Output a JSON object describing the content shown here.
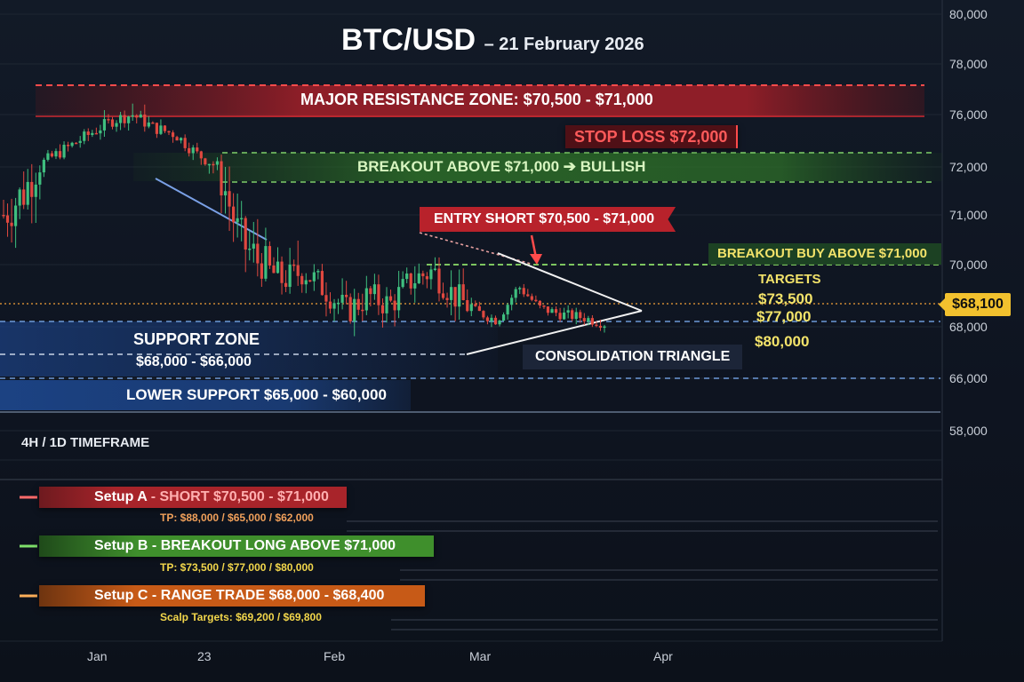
{
  "title": {
    "main": "BTC/USD",
    "date": "– 21 February 2026"
  },
  "y_axis": {
    "ticks": [
      "80,000",
      "78,000",
      "76,000",
      "72,000",
      "71,000",
      "70,000",
      "68,000",
      "66,000",
      "58,000"
    ]
  },
  "x_axis": {
    "ticks": [
      "Jan",
      "23",
      "Feb",
      "Mar",
      "Apr"
    ]
  },
  "current_price": "$68,100",
  "annotations": {
    "major_resistance": "MAJOR RESISTANCE ZONE: $70,500 - $71,000",
    "stop_loss": "STOP LOSS  $72,000",
    "breakout_above": "BREAKOUT ABOVE $71,000 ➔ BULLISH",
    "entry_short": "ENTRY SHORT $70,500 - $71,000",
    "breakout_buy": "BREAKOUT BUY ABOVE $71,000",
    "targets_title": "TARGETS",
    "targets": [
      "$73,500",
      "$77,000",
      "$80,000"
    ],
    "support_zone": "SUPPORT ZONE",
    "support_range": "$68,000 - $66,000",
    "lower_support": "LOWER SUPPORT $65,000 - $60,000",
    "consolidation": "CONSOLIDATION TRIANGLE",
    "timeframe": "4H / 1D TIMEFRAME"
  },
  "setups": [
    {
      "name": "Setup A",
      "desc": "SHORT $70,500 - $71,000",
      "tp": "TP: $88,000 / $65,000 / $62,000",
      "color": "#a8242a",
      "accent": "#ff6b6b",
      "tp_color": "#f0a05a"
    },
    {
      "name": "Setup B",
      "desc": "BREAKOUT LONG ABOVE $71,000",
      "tp": "TP: $73,500 / $77,000 / $80,000",
      "color": "#3f8f2c",
      "accent": "#7ee06a",
      "tp_color": "#f2d64b"
    },
    {
      "name": "Setup C",
      "desc": "RANGE TRADE $68,000 - $68,400",
      "tp": "Scalp Targets: $69,200 / $69,800",
      "color": "#c75a17",
      "accent": "#ffb05a",
      "tp_color": "#f2d64b"
    }
  ],
  "colors": {
    "bull": "#3fbf7f",
    "bear": "#e0483f",
    "resistance": "#b8222b",
    "support": "#1f4f9a",
    "bullish_zone": "#2f7a2a",
    "price_line": "#f2a03a"
  },
  "chart_data": {
    "type": "candlestick",
    "title": "BTC/USD",
    "subtitle": "– 21 February 2026",
    "x_ticks": [
      "Jan",
      "23",
      "Feb",
      "Mar",
      "Apr"
    ],
    "y_ticks": [
      80000,
      78000,
      76000,
      72000,
      71000,
      70000,
      68000,
      66000,
      58000
    ],
    "levels": {
      "major_resistance": [
        70500,
        71000
      ],
      "stop_loss": 72000,
      "breakout": 71000,
      "current_price": 68100,
      "support_zone": [
        66000,
        68000
      ],
      "lower_support": [
        60000,
        65000
      ],
      "targets": [
        73500,
        77000,
        80000
      ]
    },
    "approx_close_path": [
      71000,
      71500,
      72500,
      73500,
      74500,
      75500,
      76000,
      75000,
      74500,
      73000,
      72000,
      70500,
      70000,
      69500,
      69800,
      69200,
      68500,
      69000,
      68700,
      69500,
      69800,
      69000,
      68500,
      68200,
      69300,
      68600,
      68400,
      68300,
      68100
    ]
  }
}
